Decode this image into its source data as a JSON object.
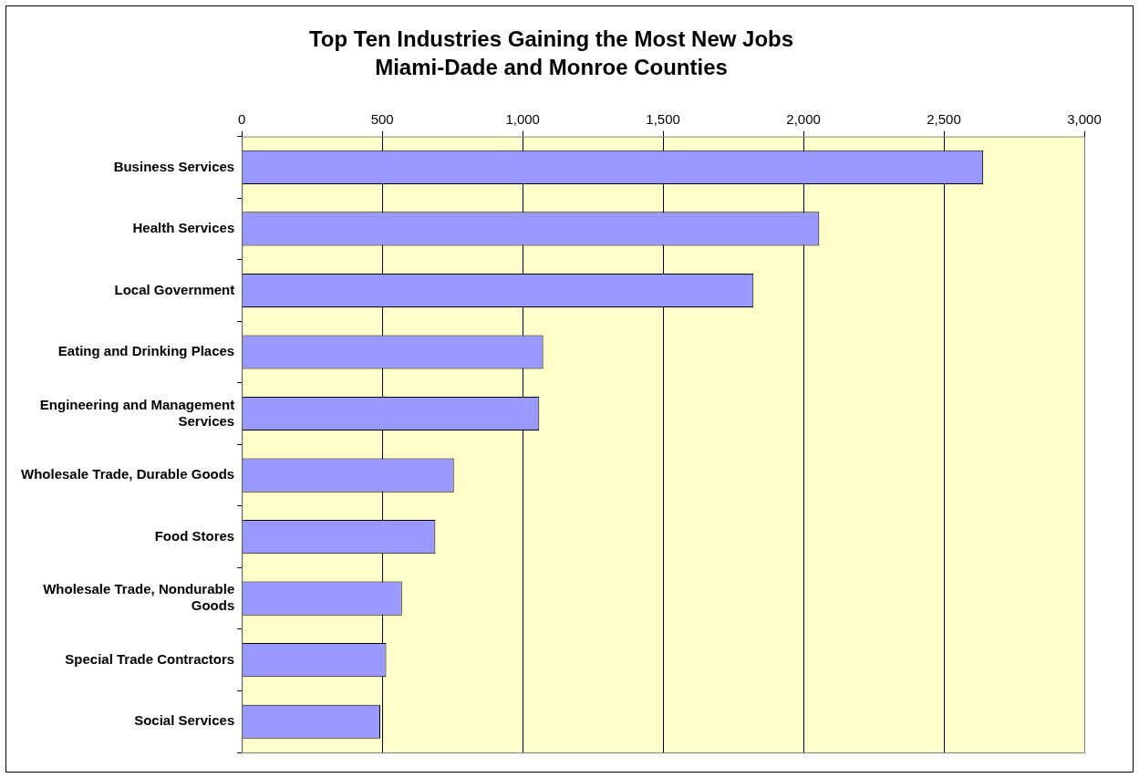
{
  "chart_data": {
    "type": "bar",
    "orientation": "horizontal",
    "title": "Top Ten Industries Gaining the Most New Jobs",
    "subtitle": "Miami-Dade and Monroe Counties",
    "categories": [
      "Business Services",
      "Health Services",
      "Local Government",
      "Eating and Drinking Places",
      "Engineering and Management Services",
      "Wholesale Trade, Durable Goods",
      "Food Stores",
      "Wholesale Trade, Nondurable Goods",
      "Special Trade Contractors",
      "Social Services"
    ],
    "values": [
      2640,
      2056,
      1822,
      1073,
      1059,
      755,
      689,
      570,
      514,
      493
    ],
    "color": "#9999ff",
    "xlim": [
      0,
      3000
    ],
    "xticks": [
      0,
      500,
      {
        "value": 1000,
        "label": "1,000"
      },
      {
        "value": 1500,
        "label": "1,500"
      },
      {
        "value": 2000,
        "label": "2,000"
      },
      {
        "value": 2500,
        "label": "2,500"
      },
      {
        "value": 3000,
        "label": "3,000"
      }
    ],
    "grid": "x"
  }
}
